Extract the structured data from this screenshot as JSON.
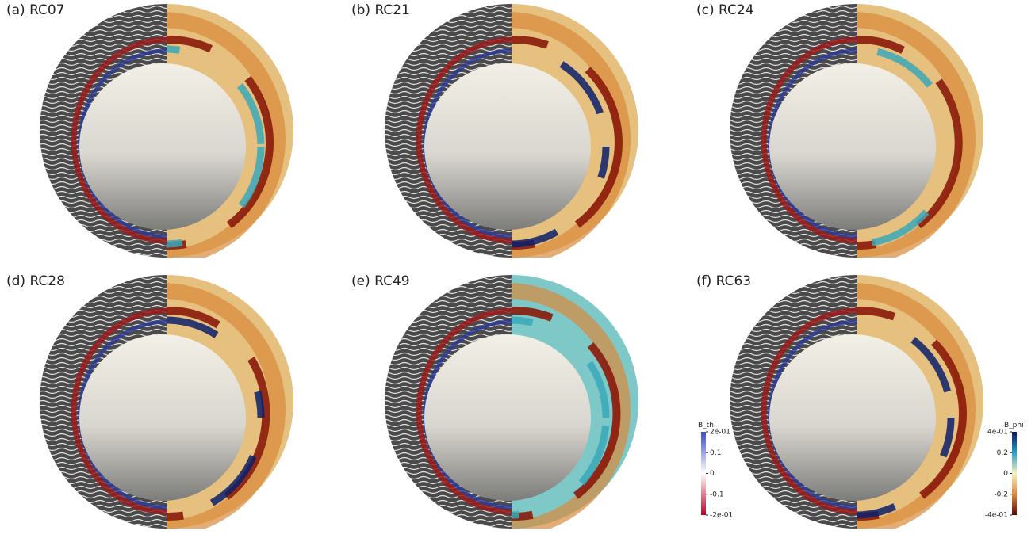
{
  "panels": [
    {
      "label": "(a) RC07"
    },
    {
      "label": "(b) RC21"
    },
    {
      "label": "(c) RC24"
    },
    {
      "label": "(d) RC28"
    },
    {
      "label": "(e) RC49"
    },
    {
      "label": "(f) RC63"
    }
  ],
  "colorbars": [
    {
      "title": "B_th",
      "range": [
        -0.2,
        0.2
      ],
      "ticks": [
        {
          "value": 0.2,
          "label": "2e-01"
        },
        0.1,
        0,
        -0.1,
        {
          "value": -0.2,
          "label": "-2e-01"
        }
      ]
    },
    {
      "title": "B_phi",
      "range": [
        -0.4,
        0.4
      ],
      "ticks": [
        {
          "value": 0.4,
          "label": "4e-01"
        },
        0.2,
        0,
        -0.2,
        {
          "value": -0.4,
          "label": "-4e-01"
        }
      ]
    }
  ]
}
